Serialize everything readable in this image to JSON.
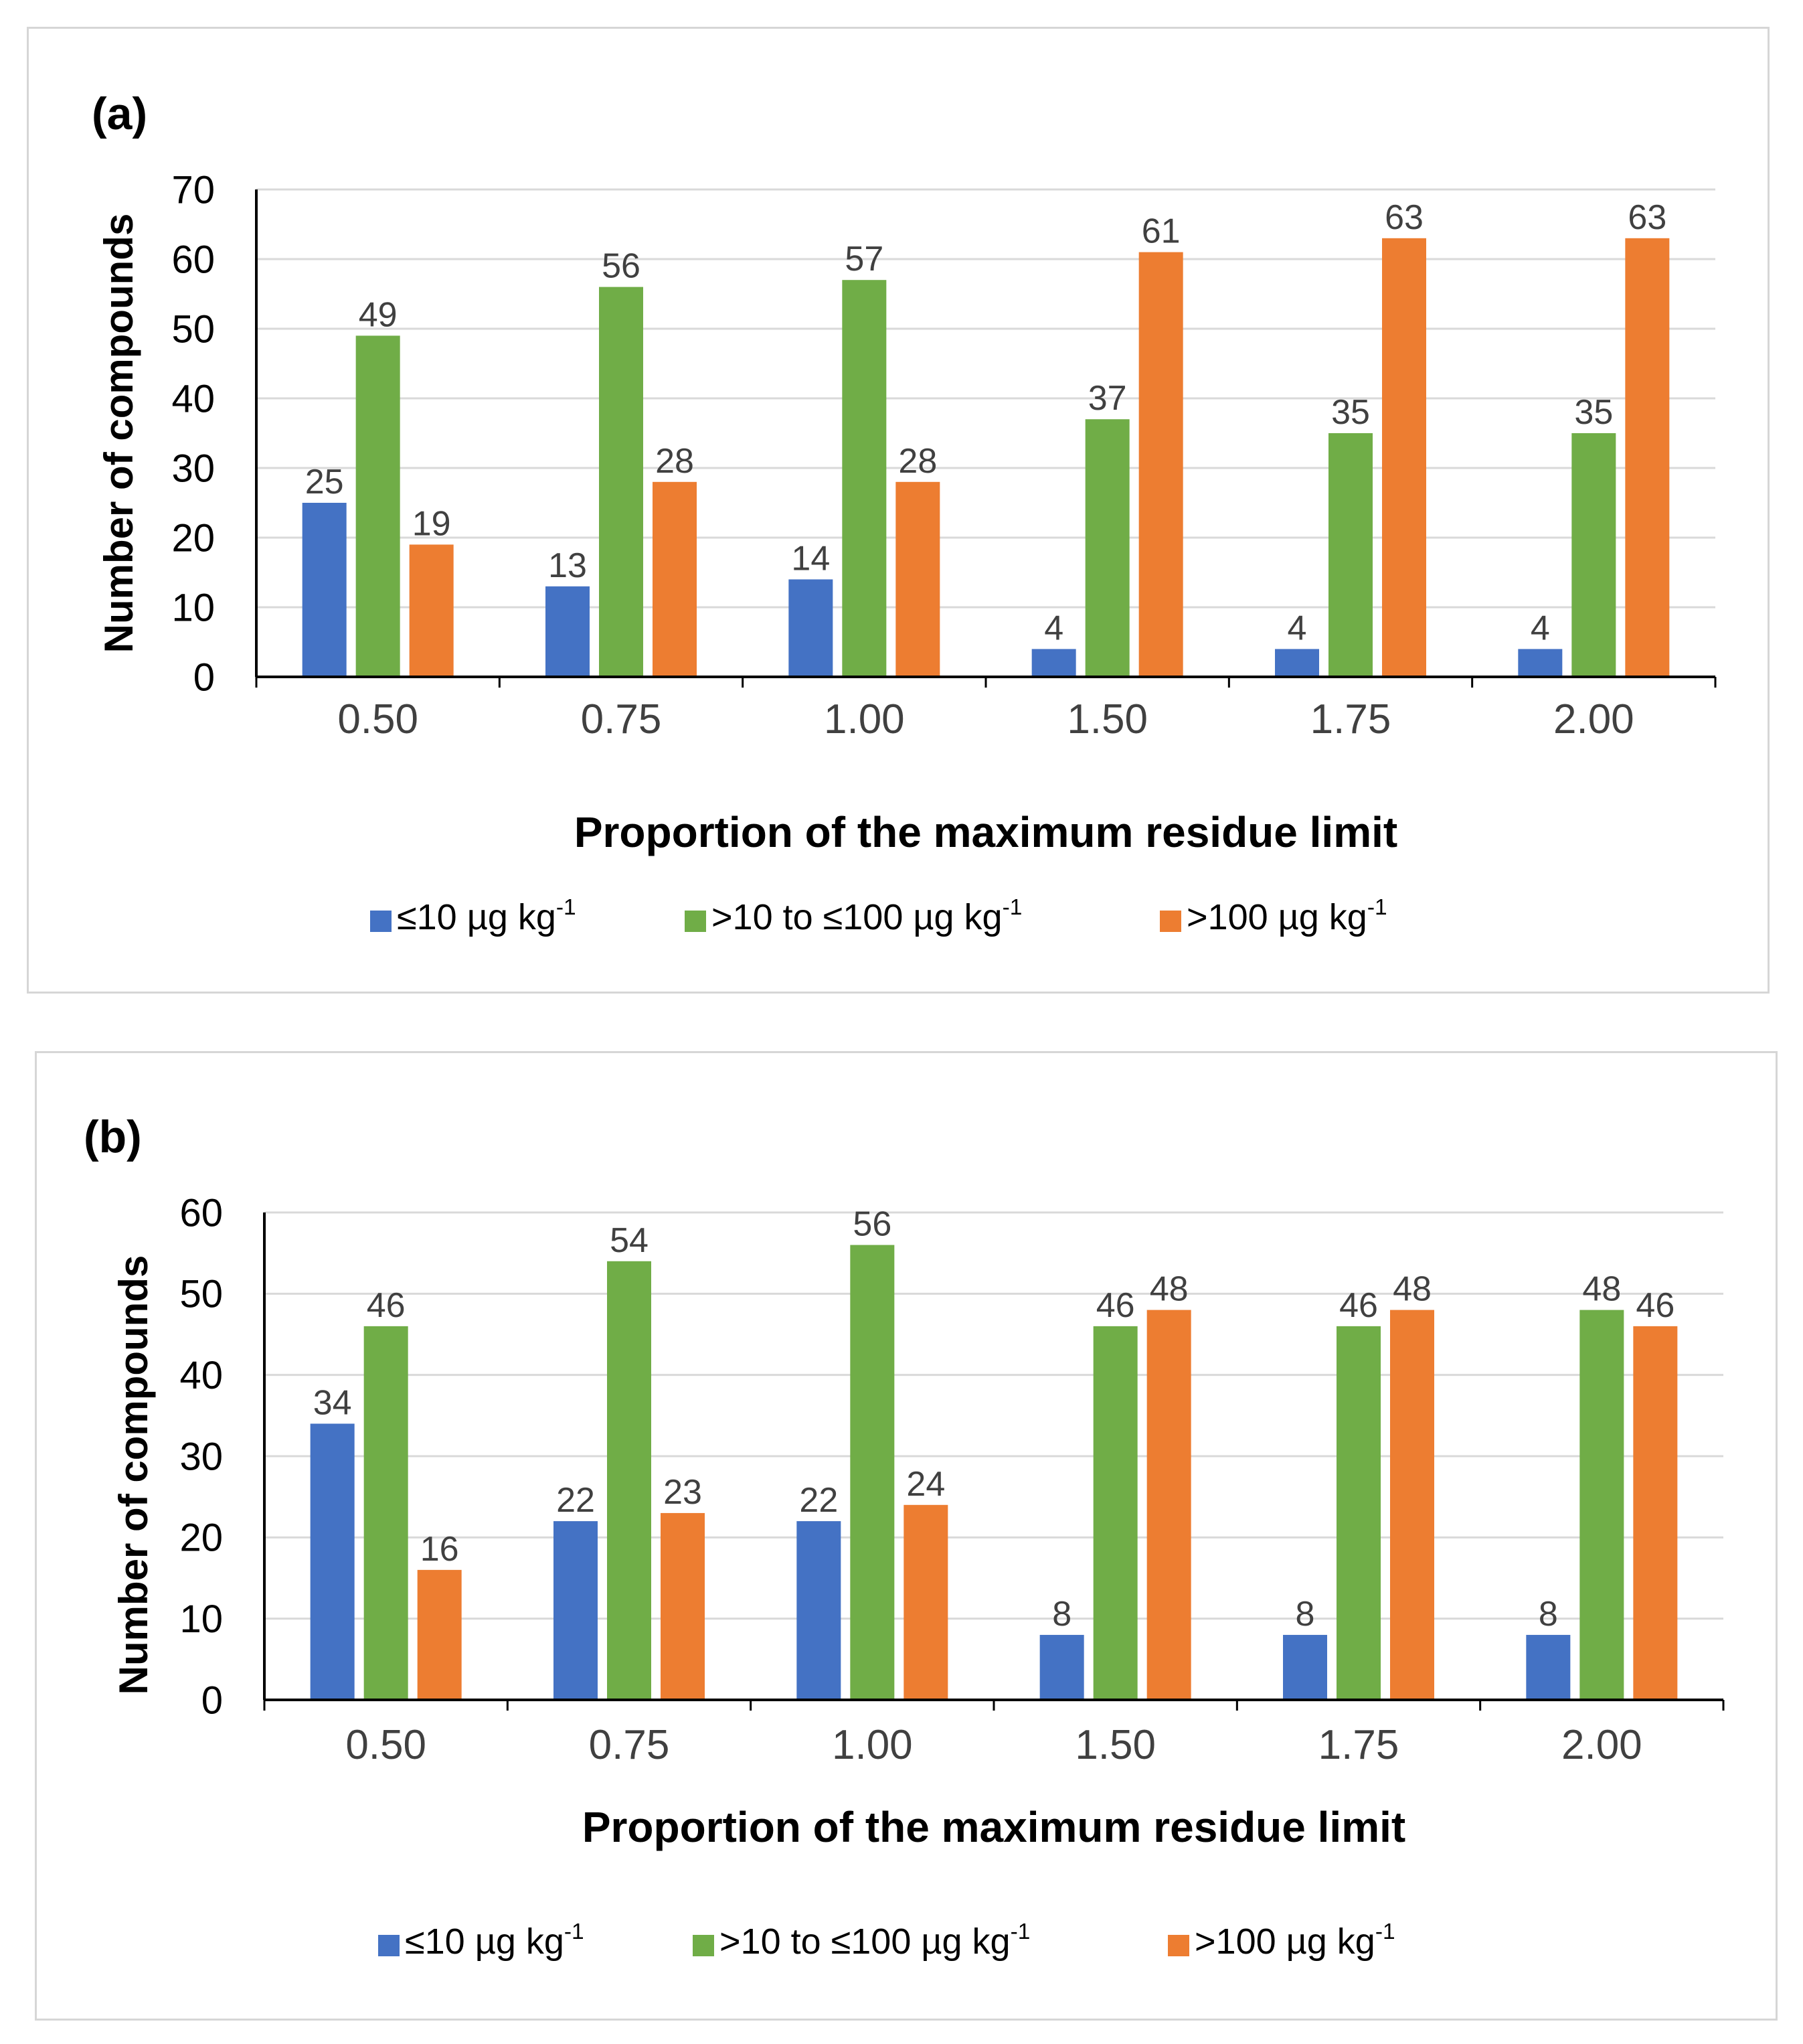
{
  "colors": {
    "blue": "#4472C4",
    "green": "#70AD47",
    "orange": "#ED7D31"
  },
  "chart_data": [
    {
      "type": "bar",
      "panel_label": "(a)",
      "categories": [
        "0.50",
        "0.75",
        "1.00",
        "1.50",
        "1.75",
        "2.00"
      ],
      "series": [
        {
          "name": "≤10 µg kg",
          "sup": "-1",
          "color": "#4472C4",
          "values": [
            25,
            13,
            14,
            4,
            4,
            4
          ]
        },
        {
          "name": ">10 to ≤100 µg kg",
          "sup": "-1",
          "color": "#70AD47",
          "values": [
            49,
            56,
            57,
            37,
            35,
            35
          ]
        },
        {
          "name": ">100 µg kg",
          "sup": "-1",
          "color": "#ED7D31",
          "values": [
            19,
            28,
            28,
            61,
            63,
            63
          ]
        }
      ],
      "yticks": [
        0,
        10,
        20,
        30,
        40,
        50,
        60,
        70
      ],
      "ylim": [
        0,
        70
      ],
      "ylabel": "Number of compounds",
      "xlabel": "Proportion of the maximum residue limit",
      "grid": true,
      "legend": "bottom"
    },
    {
      "type": "bar",
      "panel_label": "(b)",
      "categories": [
        "0.50",
        "0.75",
        "1.00",
        "1.50",
        "1.75",
        "2.00"
      ],
      "series": [
        {
          "name": "≤10 µg kg",
          "sup": "-1",
          "color": "#4472C4",
          "values": [
            34,
            22,
            22,
            8,
            8,
            8
          ]
        },
        {
          "name": ">10 to ≤100 µg kg",
          "sup": "-1",
          "color": "#70AD47",
          "values": [
            46,
            54,
            56,
            46,
            46,
            48
          ]
        },
        {
          "name": ">100 µg kg",
          "sup": "-1",
          "color": "#ED7D31",
          "values": [
            16,
            23,
            24,
            48,
            48,
            46
          ]
        }
      ],
      "yticks": [
        0,
        10,
        20,
        30,
        40,
        50,
        60
      ],
      "ylim": [
        0,
        60
      ],
      "ylabel": "Number of compounds",
      "xlabel": "Proportion of the maximum residue limit",
      "grid": true,
      "legend": "bottom"
    }
  ]
}
